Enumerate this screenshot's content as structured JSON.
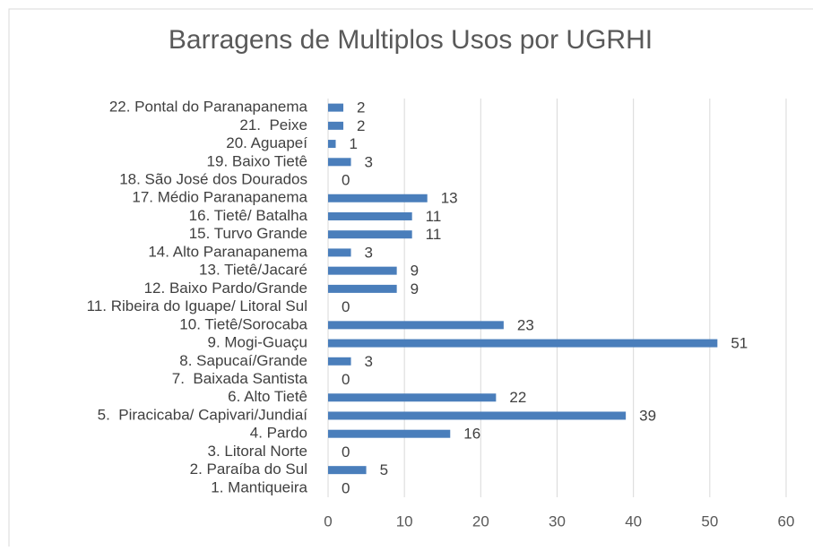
{
  "chart_data": {
    "type": "bar",
    "orientation": "horizontal",
    "title": "Barragens de Multiplos Usos por UGRHI",
    "categories": [
      "1. Mantiqueira",
      "2. Paraíba do Sul",
      "3. Litoral Norte",
      "4. Pardo",
      "5.  Piracicaba/ Capivari/Jundiaí",
      "6. Alto Tietê",
      "7.  Baixada Santista",
      "8. Sapucaí/Grande",
      "9. Mogi-Guaçu",
      "10. Tietê/Sorocaba",
      "11. Ribeira do Iguape/ Litoral Sul",
      "12. Baixo Pardo/Grande",
      "13. Tietê/Jacaré",
      "14. Alto Paranapanema",
      "15. Turvo Grande",
      "16. Tietê/ Batalha",
      "17. Médio Paranapanema",
      "18. São José dos Dourados",
      "19. Baixo Tietê",
      "20. Aguapeí",
      "21.  Peixe",
      "22. Pontal do Paranapanema"
    ],
    "values": [
      0,
      5,
      0,
      16,
      39,
      22,
      0,
      3,
      51,
      23,
      0,
      9,
      9,
      3,
      11,
      11,
      13,
      0,
      3,
      1,
      2,
      2
    ],
    "color": "#4a7ebb",
    "xlim": [
      0,
      60
    ],
    "xticks": [
      0,
      10,
      20,
      30,
      40,
      50,
      60
    ],
    "grid": true
  }
}
